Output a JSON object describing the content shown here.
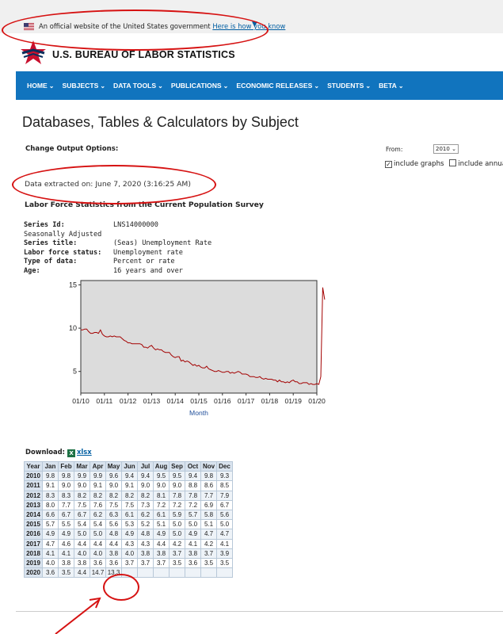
{
  "gov_banner": {
    "text": "An official website of the United States government",
    "link": "Here is how you know"
  },
  "logo": {
    "text": "U.S. BUREAU OF LABOR STATISTICS"
  },
  "nav": [
    {
      "label": "HOME"
    },
    {
      "label": "SUBJECTS"
    },
    {
      "label": "DATA TOOLS"
    },
    {
      "label": "PUBLICATIONS"
    },
    {
      "label": "ECONOMIC RELEASES"
    },
    {
      "label": "STUDENTS"
    },
    {
      "label": "BETA"
    }
  ],
  "page_title": "Databases, Tables & Calculators by Subject",
  "options": {
    "change_output": "Change Output Options:",
    "from_label": "From:",
    "from_value": "2010",
    "include_graphs": "include graphs",
    "include_annual": "include annual a"
  },
  "extracted": "Data extracted on: June 7, 2020 (3:16:25 AM)",
  "series_heading": "Labor Force Statistics from the Current Population Survey",
  "meta": [
    {
      "key": "Series Id:",
      "value": "LNS14000000"
    },
    {
      "key": "Seasonally Adjusted",
      "value": ""
    },
    {
      "key": "Series title:",
      "value": "(Seas) Unemployment Rate"
    },
    {
      "key": "Labor force status:",
      "value": "Unemployment rate"
    },
    {
      "key": "Type of data:",
      "value": "Percent or rate"
    },
    {
      "key": "Age:",
      "value": "16 years and over"
    }
  ],
  "chart_data": {
    "type": "line",
    "xlabel": "Month",
    "ylabel": "",
    "ylim": [
      2.5,
      15.5
    ],
    "yticks": [
      5,
      10,
      15
    ],
    "xticks": [
      "01/10",
      "01/11",
      "01/12",
      "01/13",
      "01/14",
      "01/15",
      "01/16",
      "01/17",
      "01/18",
      "01/19",
      "01/20"
    ],
    "grid": false,
    "line_color": "#a30000",
    "series": [
      {
        "values": [
          9.8,
          9.8,
          9.9,
          9.9,
          9.6,
          9.4,
          9.4,
          9.5,
          9.5,
          9.4,
          9.8,
          9.3,
          9.1,
          9.0,
          9.0,
          9.1,
          9.0,
          9.1,
          9.0,
          9.0,
          9.0,
          8.8,
          8.6,
          8.5,
          8.3,
          8.3,
          8.2,
          8.2,
          8.2,
          8.2,
          8.2,
          8.1,
          7.8,
          7.8,
          7.7,
          7.9,
          8.0,
          7.7,
          7.5,
          7.6,
          7.5,
          7.5,
          7.3,
          7.2,
          7.2,
          7.2,
          6.9,
          6.7,
          6.6,
          6.7,
          6.7,
          6.2,
          6.3,
          6.1,
          6.2,
          6.1,
          5.9,
          5.7,
          5.8,
          5.6,
          5.7,
          5.5,
          5.4,
          5.4,
          5.6,
          5.3,
          5.2,
          5.1,
          5.0,
          5.0,
          5.1,
          5.0,
          4.9,
          4.9,
          5.0,
          5.0,
          4.8,
          4.9,
          4.8,
          4.9,
          5.0,
          4.9,
          4.7,
          4.7,
          4.7,
          4.6,
          4.4,
          4.4,
          4.4,
          4.3,
          4.3,
          4.4,
          4.2,
          4.1,
          4.2,
          4.1,
          4.1,
          4.1,
          4.0,
          4.0,
          3.8,
          4.0,
          3.8,
          3.8,
          3.7,
          3.8,
          3.7,
          3.9,
          4.0,
          3.8,
          3.8,
          3.6,
          3.6,
          3.7,
          3.7,
          3.7,
          3.5,
          3.6,
          3.5,
          3.5,
          3.6,
          3.5,
          4.4,
          14.7,
          13.3
        ]
      }
    ]
  },
  "download": {
    "label": "Download:",
    "link": "xlsx"
  },
  "table": {
    "headers": [
      "Year",
      "Jan",
      "Feb",
      "Mar",
      "Apr",
      "May",
      "Jun",
      "Jul",
      "Aug",
      "Sep",
      "Oct",
      "Nov",
      "Dec"
    ],
    "rows": [
      [
        "2010",
        "9.8",
        "9.8",
        "9.9",
        "9.9",
        "9.6",
        "9.4",
        "9.4",
        "9.5",
        "9.5",
        "9.4",
        "9.8",
        "9.3"
      ],
      [
        "2011",
        "9.1",
        "9.0",
        "9.0",
        "9.1",
        "9.0",
        "9.1",
        "9.0",
        "9.0",
        "9.0",
        "8.8",
        "8.6",
        "8.5"
      ],
      [
        "2012",
        "8.3",
        "8.3",
        "8.2",
        "8.2",
        "8.2",
        "8.2",
        "8.2",
        "8.1",
        "7.8",
        "7.8",
        "7.7",
        "7.9"
      ],
      [
        "2013",
        "8.0",
        "7.7",
        "7.5",
        "7.6",
        "7.5",
        "7.5",
        "7.3",
        "7.2",
        "7.2",
        "7.2",
        "6.9",
        "6.7"
      ],
      [
        "2014",
        "6.6",
        "6.7",
        "6.7",
        "6.2",
        "6.3",
        "6.1",
        "6.2",
        "6.1",
        "5.9",
        "5.7",
        "5.8",
        "5.6"
      ],
      [
        "2015",
        "5.7",
        "5.5",
        "5.4",
        "5.4",
        "5.6",
        "5.3",
        "5.2",
        "5.1",
        "5.0",
        "5.0",
        "5.1",
        "5.0"
      ],
      [
        "2016",
        "4.9",
        "4.9",
        "5.0",
        "5.0",
        "4.8",
        "4.9",
        "4.8",
        "4.9",
        "5.0",
        "4.9",
        "4.7",
        "4.7"
      ],
      [
        "2017",
        "4.7",
        "4.6",
        "4.4",
        "4.4",
        "4.4",
        "4.3",
        "4.3",
        "4.4",
        "4.2",
        "4.1",
        "4.2",
        "4.1"
      ],
      [
        "2018",
        "4.1",
        "4.1",
        "4.0",
        "4.0",
        "3.8",
        "4.0",
        "3.8",
        "3.8",
        "3.7",
        "3.8",
        "3.7",
        "3.9"
      ],
      [
        "2019",
        "4.0",
        "3.8",
        "3.8",
        "3.6",
        "3.6",
        "3.7",
        "3.7",
        "3.7",
        "3.5",
        "3.6",
        "3.5",
        "3.5"
      ],
      [
        "2020",
        "3.6",
        "3.5",
        "4.4",
        "14.7",
        "13.3",
        "",
        "",
        "",
        "",
        "",
        "",
        ""
      ]
    ]
  },
  "colors": {
    "nav_bg": "#1174be",
    "annotation": "#d61212",
    "link": "#005ea2"
  }
}
